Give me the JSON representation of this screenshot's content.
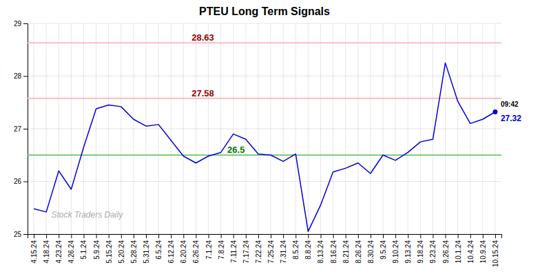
{
  "chart_data": {
    "type": "line",
    "title": "PTEU Long Term Signals",
    "categories": [
      "4.15.24",
      "4.18.24",
      "4.23.24",
      "4.26.24",
      "5.1.24",
      "5.9.24",
      "5.15.24",
      "5.20.24",
      "5.28.24",
      "5.31.24",
      "6.5.24",
      "6.12.24",
      "6.20.24",
      "6.26.24",
      "7.1.24",
      "7.8.24",
      "7.11.24",
      "7.17.24",
      "7.22.24",
      "7.25.24",
      "7.31.24",
      "8.5.24",
      "8.8.24",
      "8.13.24",
      "8.16.24",
      "8.21.24",
      "8.26.24",
      "8.30.24",
      "9.5.24",
      "9.10.24",
      "9.13.24",
      "9.18.24",
      "9.23.24",
      "9.26.24",
      "10.1.24",
      "10.4.24",
      "10.9.24",
      "10.15.24"
    ],
    "values": [
      25.48,
      25.42,
      26.2,
      25.85,
      26.65,
      27.38,
      27.45,
      27.42,
      27.18,
      27.05,
      27.08,
      26.78,
      26.48,
      26.35,
      26.48,
      26.55,
      26.9,
      26.8,
      26.52,
      26.5,
      26.38,
      26.52,
      25.05,
      25.55,
      26.18,
      26.25,
      26.35,
      26.15,
      26.5,
      26.4,
      26.55,
      26.75,
      26.8,
      28.25,
      27.52,
      27.1,
      27.18,
      27.32
    ],
    "color": "#0000dd",
    "ylim": [
      25.0,
      29.0
    ],
    "yticks": [
      25,
      26,
      27,
      28,
      29
    ],
    "grid": true,
    "reference_lines": [
      {
        "value": 28.63,
        "label": "28.63",
        "color": "#ffaaaa",
        "label_color": "#990000"
      },
      {
        "value": 27.58,
        "label": "27.58",
        "color": "#ffaaaa",
        "label_color": "#990000"
      },
      {
        "value": 26.5,
        "label": "26.5",
        "color": "#55bb55",
        "label_color": "#007700"
      }
    ],
    "last_point": {
      "marker": "circle",
      "color": "#0000cc",
      "time": "09:42",
      "time_color": "#000000",
      "label": "27.32"
    },
    "watermark": {
      "text": "Stock Traders Daily",
      "color": "#aaaaaa"
    }
  }
}
